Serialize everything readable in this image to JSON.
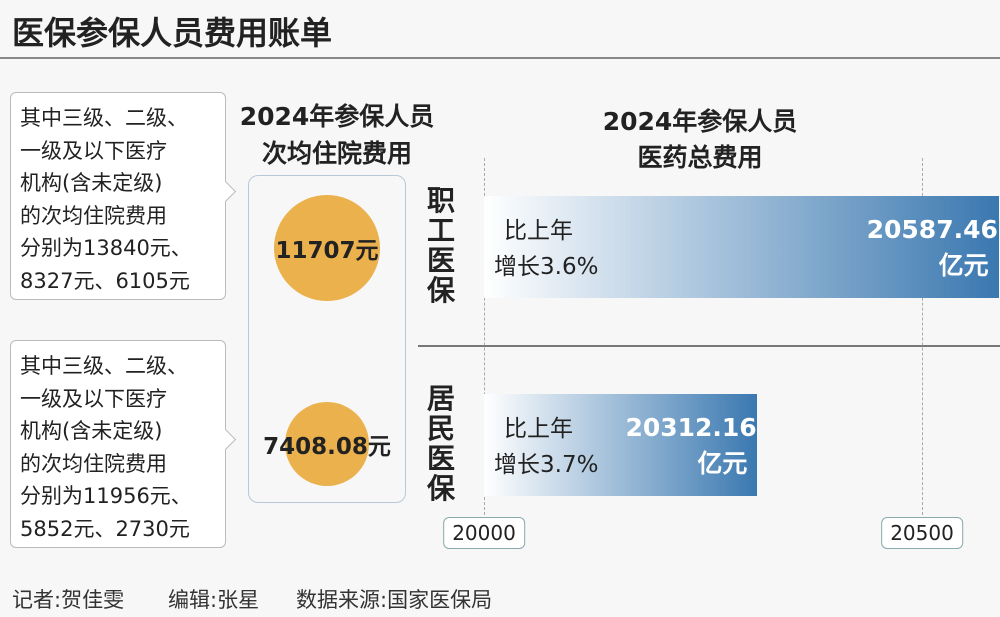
{
  "title": "医保参保人员费用账单",
  "hospitalization": {
    "title_lines": [
      "2024年参保人员",
      "次均住院费用"
    ],
    "values": [
      11707,
      7408.08
    ],
    "value_labels": [
      "11707元",
      "7408.08元"
    ],
    "color": "#ebb14d",
    "notes": [
      [
        "其中三级、二级、",
        "一级及以下医疗",
        "机构(含未定级)",
        "的次均住院费用",
        "分别为13840元、",
        "8327元、6105元"
      ],
      [
        "其中三级、二级、",
        "一级及以下医疗",
        "机构(含未定级)",
        "的次均住院费用",
        "分别为11956元、",
        "5852元、2730元"
      ]
    ]
  },
  "chart_data": {
    "type": "bar",
    "orientation": "horizontal",
    "title_lines": [
      "2024年参保人员",
      "医药总费用"
    ],
    "categories": [
      "职工医保",
      "居民医保"
    ],
    "values": [
      20587.46,
      20312.16
    ],
    "value_labels": [
      "20587.46亿元",
      "20312.16亿元"
    ],
    "annotations": [
      [
        "比上年",
        "增长3.6%"
      ],
      [
        "比上年",
        "增长3.7%"
      ]
    ],
    "color": "#3a78b0",
    "xlim": [
      20000,
      20600
    ],
    "xticks": [
      20000,
      20500
    ],
    "grid": true
  },
  "footer": [
    "记者:贺佳雯",
    "编辑:张星",
    "数据来源:国家医保局"
  ]
}
